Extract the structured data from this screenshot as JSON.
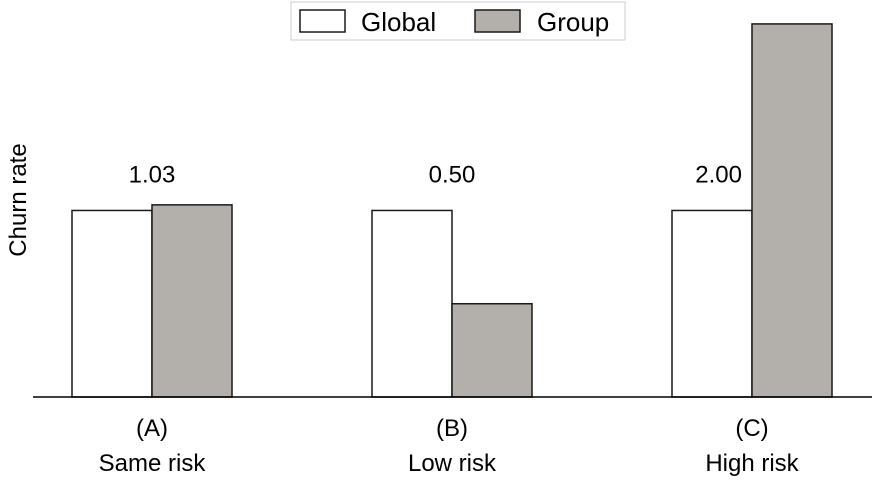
{
  "chart_data": {
    "type": "bar",
    "title": "",
    "xlabel": "",
    "ylabel": "Churn rate",
    "categories": [
      {
        "letter": "(A)",
        "name": "Same risk"
      },
      {
        "letter": "(B)",
        "name": "Low risk"
      },
      {
        "letter": "(C)",
        "name": "High risk"
      }
    ],
    "series": [
      {
        "name": "Global",
        "values": [
          1.0,
          1.0,
          1.0
        ],
        "color": "#ffffff"
      },
      {
        "name": "Group",
        "values": [
          1.03,
          0.5,
          2.0
        ],
        "color": "#b3afab"
      }
    ],
    "ratio_labels": [
      "1.03",
      "0.50",
      "2.00"
    ],
    "ylim": [
      0,
      2.08
    ],
    "yticks_shown": false,
    "grid": false,
    "legend_position": "top-center",
    "edge_color": "#1a1a1a"
  }
}
